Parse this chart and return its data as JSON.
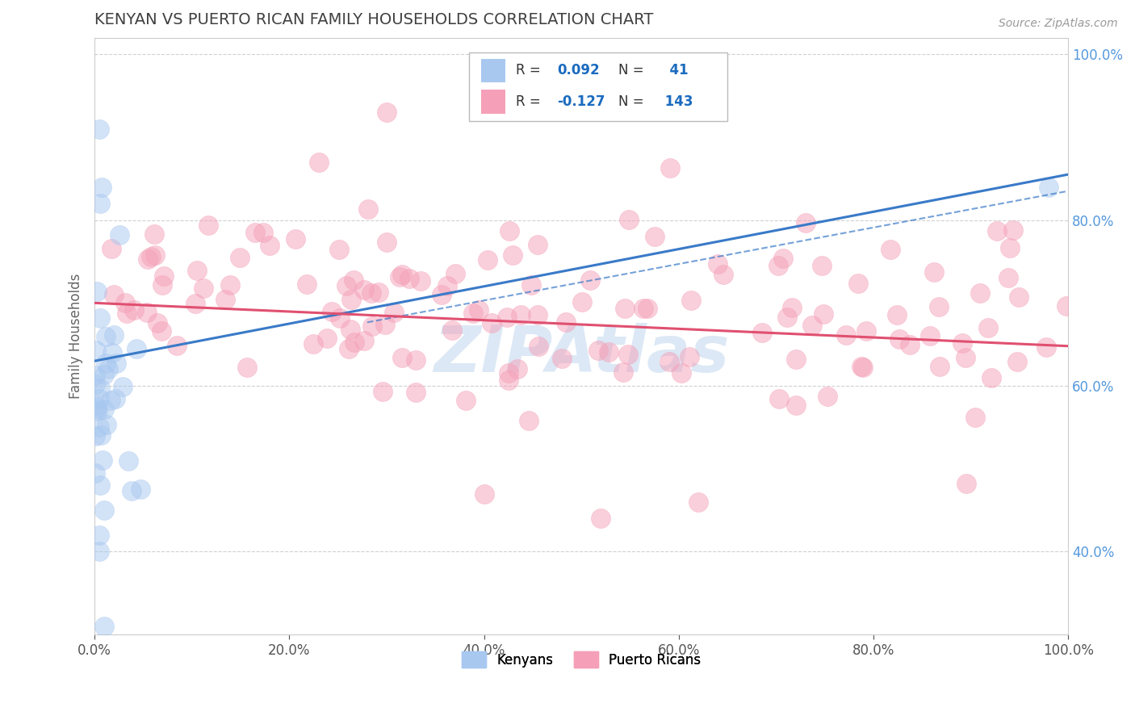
{
  "title": "KENYAN VS PUERTO RICAN FAMILY HOUSEHOLDS CORRELATION CHART",
  "source": "Source: ZipAtlas.com",
  "ylabel": "Family Households",
  "xlim": [
    0.0,
    1.0
  ],
  "ylim": [
    0.3,
    1.02
  ],
  "kenyan_R": 0.092,
  "kenyan_N": 41,
  "pr_R": -0.127,
  "pr_N": 143,
  "kenyan_color": "#a8c8f0",
  "pr_color": "#f5a0b8",
  "kenyan_line_color": "#3a7ac8",
  "pr_line_color": "#e05070",
  "bg_color": "#ffffff",
  "grid_color": "#cccccc",
  "title_color": "#404040",
  "legend_r_color": "#1a6bbf",
  "right_axis_color": "#5599dd",
  "watermark_color": "#dce8f5",
  "right_yticks": [
    0.4,
    0.6,
    0.8,
    1.0
  ],
  "xticks": [
    0.0,
    0.2,
    0.4,
    0.6,
    0.8,
    1.0
  ]
}
